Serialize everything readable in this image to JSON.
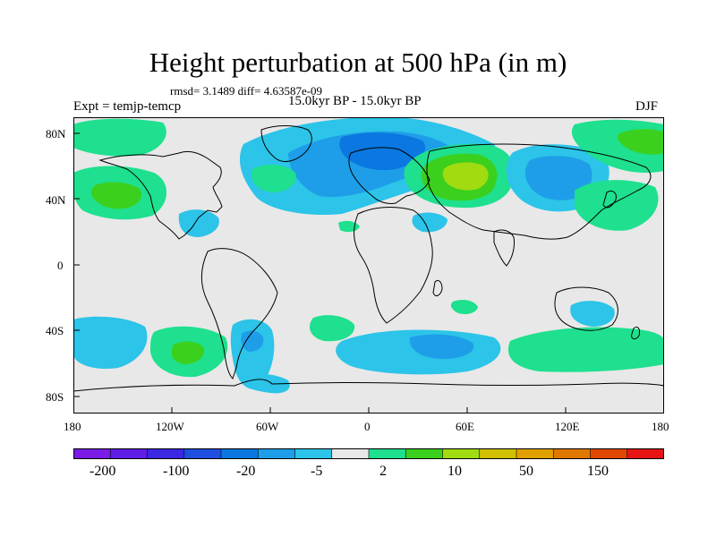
{
  "title": "Height perturbation at 500 hPa (in m)",
  "stats": "rmsd= 3.1489 diff= 4.63587e-09",
  "experiment": "Expt = temjp-temcp",
  "period": "15.0kyr BP - 15.0kyr BP",
  "season": "DJF",
  "lat_labels": [
    "80N",
    "40N",
    "0",
    "40S",
    "80S"
  ],
  "lon_labels": [
    "180",
    "120W",
    "60W",
    "0",
    "60E",
    "120E",
    "180"
  ],
  "colorbar": {
    "colors": [
      "#7a1ce6",
      "#5e1ee6",
      "#3c28e2",
      "#1e4fe0",
      "#0a78e0",
      "#1e9ee8",
      "#2cc4e8",
      "#e8e8e8",
      "#1ee08e",
      "#3cd01e",
      "#a0dc10",
      "#d0c000",
      "#e0a000",
      "#e07800",
      "#e04800",
      "#e81414"
    ],
    "labels": [
      "-200",
      "-100",
      "-20",
      "-5",
      "2",
      "10",
      "50",
      "150"
    ]
  }
}
